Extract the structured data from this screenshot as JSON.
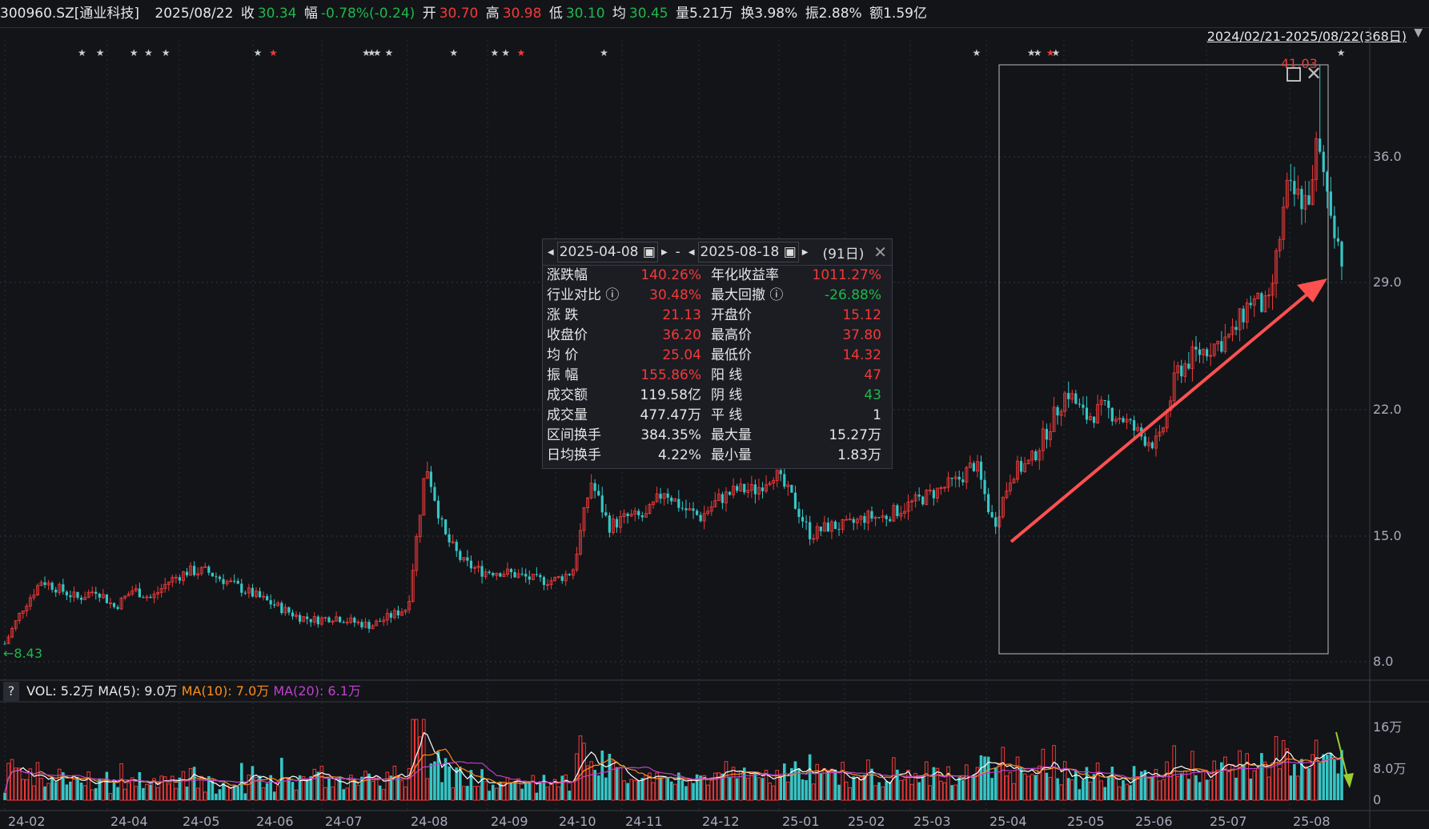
{
  "header": {
    "code": "300960.SZ[通业科技]",
    "date": "2025/08/22",
    "close_label": "收",
    "close": "30.34",
    "chg_label": "幅",
    "chg": "-0.78%(-0.24)",
    "open_label": "开",
    "open": "30.70",
    "high_label": "高",
    "high": "30.98",
    "low_label": "低",
    "low": "30.10",
    "avg_label": "均",
    "avg": "30.45",
    "vol": "量5.21万",
    "turnover": "换3.98%",
    "amplitude": "振2.88%",
    "amount": "额1.59亿"
  },
  "range": {
    "label": "2024/02/21-2025/08/22(368日)"
  },
  "price_axis": [
    "36.0",
    "29.0",
    "22.0",
    "15.0",
    "8.0"
  ],
  "markers": {
    "min_label": "←8.43",
    "max_label": "41.03"
  },
  "popup": {
    "start": "2025-04-08",
    "sep": "-",
    "end": "2025-08-18",
    "days": "(91日)",
    "rows": [
      {
        "l": "涨跌幅",
        "v": "140.26%",
        "vc": "r",
        "l2": "年化收益率",
        "v2": "1011.27%",
        "v2c": "r"
      },
      {
        "l": "行业对比 ⓘ",
        "v": "30.48%",
        "vc": "r",
        "l2": "最大回撤 ⓘ",
        "v2": "-26.88%",
        "v2c": "g"
      },
      {
        "l": "涨  跌",
        "v": "21.13",
        "vc": "r",
        "l2": "开盘价",
        "v2": "15.12",
        "v2c": "r"
      },
      {
        "l": "收盘价",
        "v": "36.20",
        "vc": "r",
        "l2": "最高价",
        "v2": "37.80",
        "v2c": "r"
      },
      {
        "l": "均  价",
        "v": "25.04",
        "vc": "r",
        "l2": "最低价",
        "v2": "14.32",
        "v2c": "r"
      },
      {
        "l": "振  幅",
        "v": "155.86%",
        "vc": "r",
        "l2": "阳  线",
        "v2": "47",
        "v2c": "r"
      },
      {
        "l": "成交额",
        "v": "119.58亿",
        "vc": "w",
        "l2": "阴  线",
        "v2": "43",
        "v2c": "g"
      },
      {
        "l": "成交量",
        "v": "477.47万",
        "vc": "w",
        "l2": "平  线",
        "v2": "1",
        "v2c": "w"
      },
      {
        "l": "区间换手",
        "v": "384.35%",
        "vc": "w",
        "l2": "最大量",
        "v2": "15.27万",
        "v2c": "w"
      },
      {
        "l": "日均换手",
        "v": "4.22%",
        "vc": "w",
        "l2": "最小量",
        "v2": "1.83万",
        "v2c": "w"
      }
    ]
  },
  "volume": {
    "help": "?",
    "vol": "VOL: 5.2万",
    "ma5": "MA(5): 9.0万",
    "ma10": "MA(10): 7.0万",
    "ma20": "MA(20): 6.1万",
    "axis": [
      "16万",
      "8.0万",
      "0"
    ]
  },
  "x_axis": [
    "24-02",
    "24-04",
    "24-05",
    "24-06",
    "24-07",
    "24-08",
    "24-09",
    "24-10",
    "24-11",
    "24-12",
    "25-01",
    "25-02",
    "25-03",
    "25-04",
    "25-05",
    "25-06",
    "25-07",
    "25-08"
  ],
  "colors": {
    "up": "#f23a3a",
    "down": "#36c6c6",
    "ma5": "#ffffff",
    "ma10": "#ff8c1a",
    "ma20": "#c040d0",
    "arrow": "#ff5050"
  },
  "chart_data": {
    "type": "candlestick",
    "weekly_close_approx": [
      9,
      11,
      12.5,
      12,
      11.5,
      12,
      11,
      12,
      11.5,
      12.5,
      13,
      13,
      12.5,
      12,
      11.5,
      11,
      10.5,
      10.3,
      10.5,
      10.2,
      10,
      10.5,
      11,
      19,
      15,
      13.5,
      13,
      13,
      12.8,
      12.5,
      12.5,
      13,
      18,
      15.5,
      16,
      16,
      17.5,
      16.5,
      16,
      17,
      17.5,
      17.5,
      18.5,
      17,
      15,
      15.5,
      15.5,
      16,
      16,
      16.5,
      17,
      17.5,
      18,
      19,
      15.5,
      18.5,
      19,
      21,
      23,
      21.5,
      22,
      21.5,
      20.5,
      20,
      24,
      25,
      25.5,
      26,
      28,
      27.5,
      34,
      33.5,
      35,
      30.3
    ]
  }
}
